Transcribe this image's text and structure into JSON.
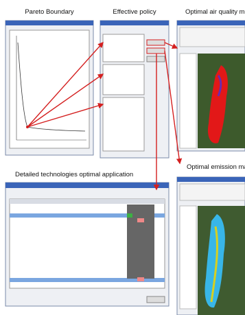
{
  "panels": {
    "pareto": {
      "title": "Pareto Boundary"
    },
    "policy": {
      "title": "Effective policy"
    },
    "air_quality": {
      "title": "Optimal air quality ma"
    },
    "emission": {
      "title": "Optimal emission map"
    },
    "technologies": {
      "title": "Detailed technologies optimal application"
    }
  }
}
